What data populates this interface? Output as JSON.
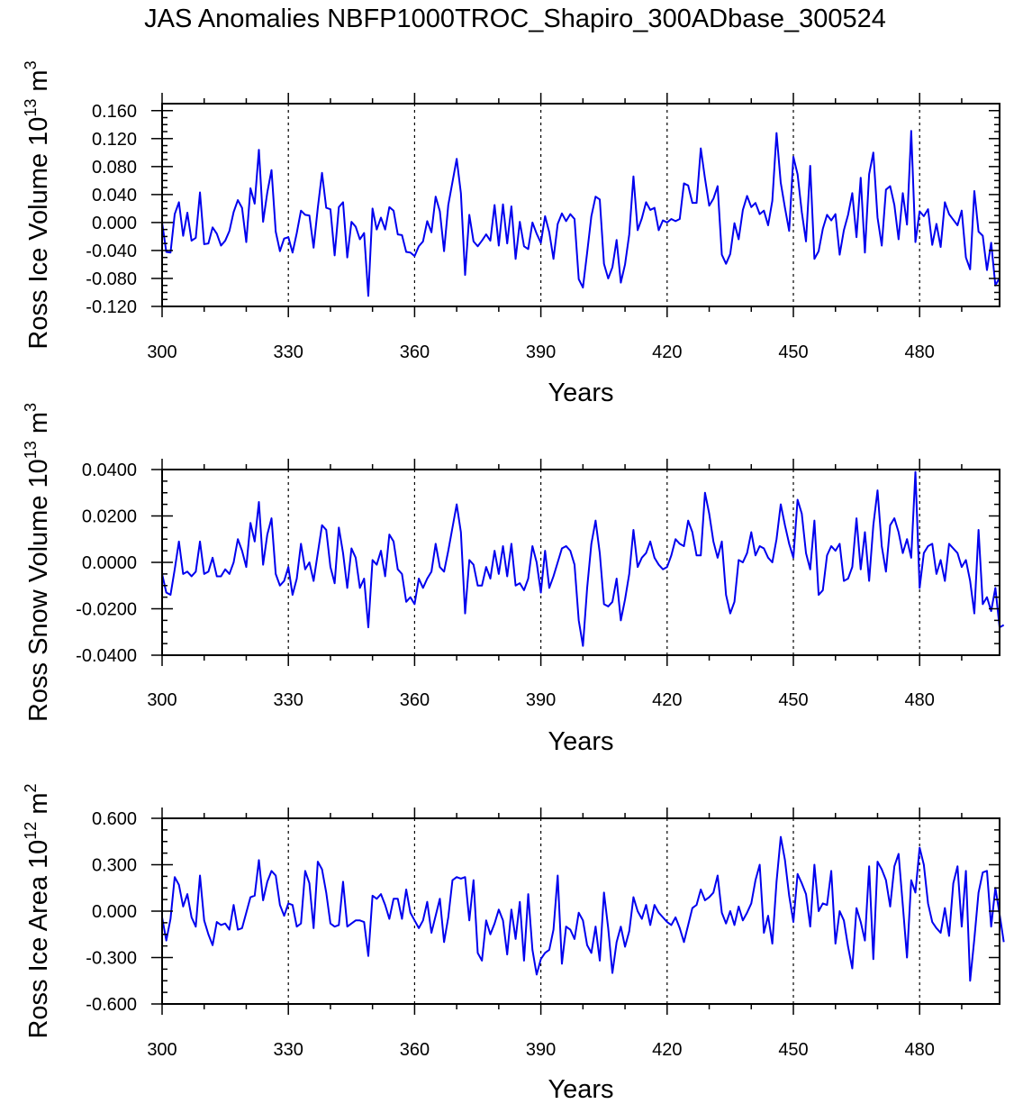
{
  "title": "JAS Anomalies NBFP1000TROC_Shapiro_300ADbase_300524",
  "line_color": "#0000ee",
  "chart_data": [
    {
      "type": "line",
      "ylabel_main": "Ross Ice Volume 10",
      "ylabel_exp": "13",
      "ylabel_unit": " m",
      "ylabel_unit_exp": "3",
      "xlabel": "Years",
      "xlim": [
        300,
        499
      ],
      "ylim": [
        -0.12,
        0.17
      ],
      "yticks": [
        -0.12,
        -0.08,
        -0.04,
        0.0,
        0.04,
        0.08,
        0.12,
        0.16
      ],
      "ytick_labels": [
        "-0.120",
        "-0.080",
        "-0.040",
        "0.000",
        "0.040",
        "0.080",
        "0.120",
        "0.160"
      ],
      "xticks": [
        300,
        330,
        360,
        390,
        420,
        450,
        480
      ],
      "xtick_labels": [
        "300",
        "330",
        "360",
        "390",
        "420",
        "450",
        "480"
      ],
      "grid_x": [
        330,
        360,
        390,
        420,
        450,
        480
      ],
      "x_start": 300,
      "values": [
        0.0,
        -0.042,
        -0.043,
        0.012,
        0.029,
        -0.019,
        0.014,
        -0.026,
        -0.022,
        0.043,
        -0.031,
        -0.03,
        -0.007,
        -0.016,
        -0.033,
        -0.026,
        -0.012,
        0.015,
        0.032,
        0.021,
        -0.028,
        0.049,
        0.027,
        0.104,
        0.001,
        0.043,
        0.075,
        -0.013,
        -0.041,
        -0.023,
        -0.021,
        -0.043,
        -0.015,
        0.017,
        0.011,
        0.01,
        -0.036,
        0.021,
        0.071,
        0.021,
        0.019,
        -0.047,
        0.022,
        0.029,
        -0.05,
        0.001,
        -0.006,
        -0.024,
        -0.015,
        -0.105,
        0.02,
        -0.01,
        0.007,
        -0.01,
        0.022,
        0.017,
        -0.017,
        -0.018,
        -0.042,
        -0.043,
        -0.048,
        -0.034,
        -0.027,
        0.002,
        -0.014,
        0.037,
        0.016,
        -0.041,
        0.025,
        0.058,
        0.091,
        0.042,
        -0.075,
        0.011,
        -0.027,
        -0.034,
        -0.026,
        -0.017,
        -0.026,
        0.025,
        -0.033,
        0.026,
        -0.03,
        0.023,
        -0.052,
        0.001,
        -0.034,
        -0.038,
        0.0,
        -0.016,
        -0.029,
        0.009,
        -0.014,
        -0.052,
        -0.002,
        0.013,
        0.002,
        0.012,
        0.005,
        -0.081,
        -0.093,
        -0.043,
        0.009,
        0.037,
        0.033,
        -0.059,
        -0.08,
        -0.064,
        -0.025,
        -0.086,
        -0.06,
        -0.017,
        0.066,
        -0.011,
        0.006,
        0.029,
        0.018,
        0.021,
        -0.011,
        0.003,
        0.0,
        0.005,
        0.002,
        0.005,
        0.056,
        0.053,
        0.028,
        0.028,
        0.106,
        0.063,
        0.024,
        0.034,
        0.052,
        -0.046,
        -0.059,
        -0.045,
        -0.001,
        -0.024,
        0.018,
        0.038,
        0.022,
        0.028,
        0.012,
        0.017,
        -0.004,
        0.031,
        0.128,
        0.057,
        0.021,
        -0.012,
        0.094,
        0.069,
        0.015,
        -0.027,
        0.081,
        -0.052,
        -0.041,
        -0.009,
        0.011,
        0.003,
        0.012,
        -0.046,
        -0.011,
        0.011,
        0.042,
        -0.021,
        0.064,
        -0.043,
        0.069,
        0.1,
        0.007,
        -0.033,
        0.047,
        0.052,
        0.025,
        -0.024,
        0.042,
        -0.003,
        0.131,
        -0.028,
        0.016,
        0.009,
        0.019,
        -0.032,
        -0.002,
        -0.035,
        0.029,
        0.012,
        0.004,
        -0.004,
        0.017,
        -0.05,
        -0.067,
        0.045,
        -0.013,
        -0.019,
        -0.068,
        -0.029,
        -0.09,
        -0.079
      ]
    },
    {
      "type": "line",
      "ylabel_main": "Ross Snow Volume 10",
      "ylabel_exp": "13",
      "ylabel_unit": " m",
      "ylabel_unit_exp": "3",
      "xlabel": "Years",
      "xlim": [
        300,
        499
      ],
      "ylim": [
        -0.04,
        0.04
      ],
      "yticks": [
        -0.04,
        -0.02,
        0.0,
        0.02,
        0.04
      ],
      "ytick_labels": [
        "-0.0400",
        "-0.0200",
        "0.0000",
        "0.0200",
        "0.0400"
      ],
      "xticks": [
        300,
        330,
        360,
        390,
        420,
        450,
        480
      ],
      "xtick_labels": [
        "300",
        "330",
        "360",
        "390",
        "420",
        "450",
        "480"
      ],
      "grid_x": [
        330,
        360,
        390,
        420,
        450,
        480
      ],
      "x_start": 300,
      "values": [
        -0.005,
        -0.013,
        -0.014,
        -0.003,
        0.009,
        -0.005,
        -0.004,
        -0.006,
        -0.004,
        0.009,
        -0.005,
        -0.004,
        0.002,
        -0.006,
        -0.006,
        -0.003,
        -0.005,
        0.0,
        0.01,
        0.005,
        -0.002,
        0.017,
        0.009,
        0.026,
        -0.001,
        0.012,
        0.019,
        -0.005,
        -0.01,
        -0.008,
        -0.002,
        -0.014,
        -0.007,
        0.008,
        -0.003,
        0.0,
        -0.008,
        0.004,
        0.016,
        0.014,
        -0.002,
        -0.009,
        0.015,
        0.004,
        -0.011,
        0.006,
        0.002,
        -0.011,
        -0.007,
        -0.028,
        0.001,
        -0.001,
        0.005,
        -0.006,
        0.012,
        0.009,
        -0.003,
        -0.005,
        -0.017,
        -0.015,
        -0.018,
        -0.007,
        -0.011,
        -0.007,
        -0.004,
        0.008,
        -0.002,
        -0.004,
        0.005,
        0.015,
        0.025,
        0.013,
        -0.022,
        0.001,
        -0.001,
        -0.01,
        -0.01,
        -0.002,
        -0.007,
        0.005,
        -0.005,
        0.007,
        -0.006,
        0.008,
        -0.01,
        -0.009,
        -0.012,
        -0.007,
        0.007,
        0.0,
        -0.013,
        0.005,
        -0.011,
        -0.006,
        0.0,
        0.006,
        0.007,
        0.005,
        -0.001,
        -0.025,
        -0.036,
        -0.011,
        0.008,
        0.018,
        0.004,
        -0.018,
        -0.019,
        -0.017,
        -0.007,
        -0.025,
        -0.016,
        -0.005,
        0.014,
        -0.002,
        0.002,
        0.004,
        0.009,
        0.002,
        -0.001,
        -0.003,
        -0.002,
        0.003,
        0.01,
        0.008,
        0.007,
        0.018,
        0.013,
        0.003,
        0.003,
        0.03,
        0.021,
        0.009,
        0.002,
        0.009,
        -0.014,
        -0.022,
        -0.017,
        0.001,
        0.0,
        0.004,
        0.013,
        0.003,
        0.007,
        0.006,
        0.002,
        0.0,
        0.01,
        0.025,
        0.016,
        0.008,
        0.002,
        0.027,
        0.021,
        0.004,
        -0.003,
        0.018,
        -0.014,
        -0.012,
        0.003,
        0.007,
        0.005,
        0.008,
        -0.008,
        -0.007,
        -0.002,
        0.019,
        -0.003,
        0.013,
        -0.008,
        0.016,
        0.031,
        0.007,
        -0.004,
        0.016,
        0.019,
        0.013,
        0.004,
        0.01,
        0.002,
        0.039,
        -0.011,
        0.004,
        0.007,
        0.008,
        -0.005,
        0.001,
        -0.008,
        0.008,
        0.006,
        0.004,
        -0.002,
        0.001,
        -0.008,
        -0.022,
        0.014,
        -0.018,
        -0.015,
        -0.021,
        -0.011,
        -0.028,
        -0.027
      ]
    },
    {
      "type": "line",
      "ylabel_main": "Ross Ice Area 10",
      "ylabel_exp": "12",
      "ylabel_unit": " m",
      "ylabel_unit_exp": "2",
      "xlabel": "Years",
      "xlim": [
        300,
        499
      ],
      "ylim": [
        -0.6,
        0.6
      ],
      "yticks": [
        -0.6,
        -0.3,
        0.0,
        0.3,
        0.6
      ],
      "ytick_labels": [
        "-0.600",
        "-0.300",
        "0.000",
        "0.300",
        "0.600"
      ],
      "xticks": [
        300,
        330,
        360,
        390,
        420,
        450,
        480
      ],
      "xtick_labels": [
        "300",
        "330",
        "360",
        "390",
        "420",
        "450",
        "480"
      ],
      "grid_x": [
        330,
        360,
        390,
        420,
        450,
        480
      ],
      "x_start": 300,
      "values": [
        -0.04,
        -0.19,
        -0.05,
        0.22,
        0.17,
        0.03,
        0.11,
        -0.04,
        -0.1,
        0.23,
        -0.06,
        -0.15,
        -0.22,
        -0.07,
        -0.09,
        -0.08,
        -0.12,
        0.04,
        -0.12,
        -0.11,
        -0.01,
        0.09,
        0.1,
        0.33,
        0.07,
        0.19,
        0.26,
        0.23,
        0.04,
        -0.03,
        0.05,
        0.04,
        -0.1,
        -0.08,
        0.26,
        0.18,
        -0.11,
        0.32,
        0.27,
        0.12,
        -0.08,
        -0.1,
        -0.09,
        0.19,
        -0.1,
        -0.08,
        -0.06,
        -0.06,
        -0.07,
        -0.29,
        0.1,
        0.08,
        0.11,
        0.04,
        -0.05,
        0.08,
        0.08,
        -0.05,
        0.14,
        -0.01,
        -0.06,
        -0.11,
        -0.06,
        0.06,
        -0.14,
        -0.03,
        0.08,
        -0.2,
        -0.04,
        0.2,
        0.22,
        0.21,
        0.22,
        -0.06,
        0.2,
        -0.27,
        -0.32,
        -0.06,
        -0.15,
        -0.08,
        0.01,
        -0.06,
        -0.28,
        0.01,
        -0.18,
        0.06,
        -0.32,
        0.11,
        -0.25,
        -0.41,
        -0.31,
        -0.27,
        -0.25,
        -0.12,
        0.23,
        -0.34,
        -0.1,
        -0.12,
        -0.18,
        -0.01,
        -0.06,
        -0.22,
        -0.27,
        -0.1,
        -0.32,
        0.12,
        -0.11,
        -0.4,
        -0.2,
        -0.1,
        -0.23,
        -0.13,
        0.09,
        0.0,
        -0.05,
        0.04,
        -0.09,
        0.04,
        -0.01,
        -0.04,
        -0.07,
        -0.09,
        -0.04,
        -0.11,
        -0.2,
        -0.09,
        0.02,
        0.04,
        0.14,
        0.07,
        0.09,
        0.12,
        0.23,
        -0.01,
        -0.08,
        0.0,
        -0.09,
        0.03,
        -0.06,
        -0.01,
        0.05,
        0.2,
        0.3,
        -0.14,
        -0.03,
        -0.21,
        0.19,
        0.48,
        0.33,
        0.1,
        -0.07,
        0.24,
        0.18,
        0.11,
        -0.1,
        0.3,
        0.0,
        0.05,
        0.04,
        0.26,
        -0.21,
        0.0,
        -0.06,
        -0.23,
        -0.37,
        0.02,
        -0.07,
        -0.19,
        0.29,
        -0.31,
        0.32,
        0.27,
        0.2,
        0.03,
        0.29,
        0.37,
        0.04,
        -0.3,
        0.2,
        0.12,
        0.41,
        0.3,
        0.05,
        -0.07,
        -0.11,
        -0.14,
        0.02,
        -0.16,
        0.18,
        0.29,
        -0.1,
        0.26,
        -0.45,
        -0.18,
        0.12,
        0.25,
        0.26,
        -0.1,
        0.15,
        -0.02,
        -0.2
      ]
    }
  ]
}
